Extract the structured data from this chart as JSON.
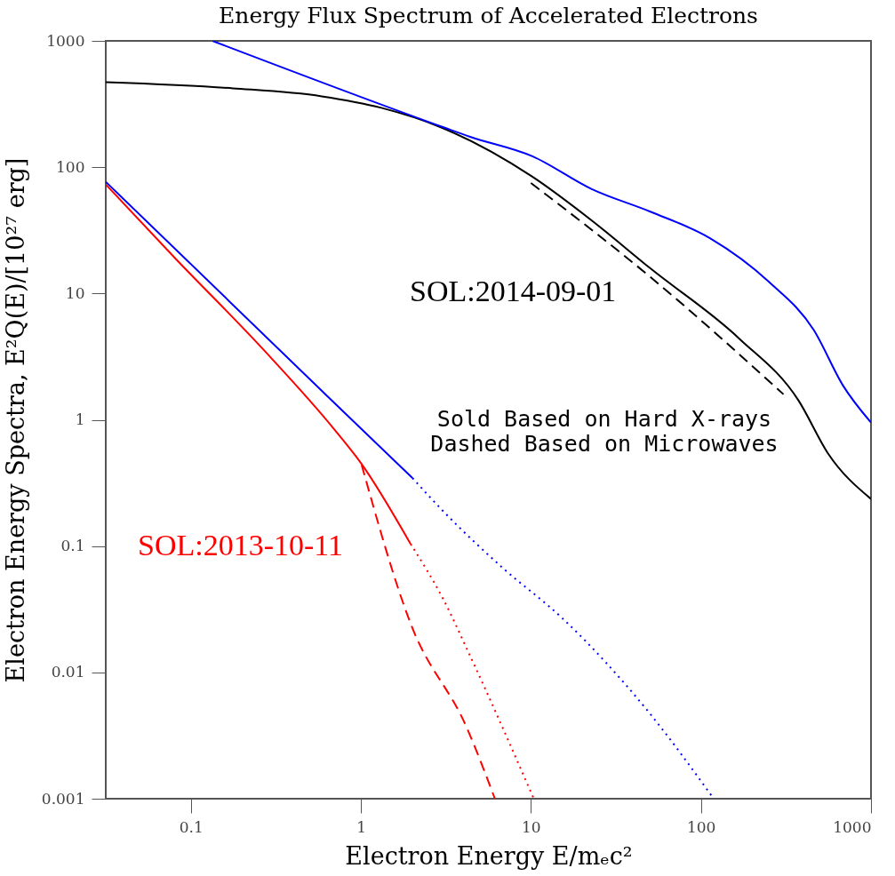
{
  "chart_data": {
    "type": "line",
    "title": "Energy Flux Spectrum of Accelerated Electrons",
    "xlabel": "Electron Energy E/mₑc²",
    "ylabel": "Electron Energy Spectra, E²Q(E)/[10²⁷ erg]",
    "log": "xy",
    "grid": false,
    "marker": "none",
    "xlim": [
      0.0316,
      1000
    ],
    "ylim": [
      0.001,
      1000
    ],
    "xticks": [
      0.1,
      1,
      10,
      100,
      1000
    ],
    "yticks": [
      0.001,
      0.01,
      0.1,
      1,
      10,
      100,
      1000
    ],
    "series": [
      {
        "color": "#000000",
        "line_style": "solid",
        "x": [
          0.0316,
          0.177,
          0.589,
          1.32,
          2.95,
          10.2,
          22.8,
          50.4,
          168,
          375,
          558,
          1000
        ],
        "values": [
          471,
          421,
          364,
          295,
          207,
          84,
          37.8,
          15.8,
          4.39,
          1.42,
          0.543,
          0.236
        ]
      },
      {
        "color": "#ff0000",
        "line_style": "solid",
        "x": [
          0.0316,
          0.08,
          0.267,
          0.698,
          1,
          1.96
        ],
        "values": [
          73,
          19.3,
          3.6,
          0.84,
          0.455,
          0.104
        ]
      },
      {
        "color": "#0000ff",
        "line_style": "solid",
        "x": [
          0.134,
          3.06,
          4.39,
          10.2,
          22.8,
          50.4,
          113,
          252,
          460,
          684,
          1000
        ],
        "values": [
          1000,
          207,
          174,
          122,
          67,
          44.4,
          27.4,
          12.3,
          5.15,
          1.87,
          0.95
        ]
      },
      {
        "color": "#000000",
        "line_style": "dashed",
        "x": [
          10,
          50.4,
          306
        ],
        "values": [
          75,
          13.5,
          1.59
        ]
      },
      {
        "color": "#0000ff",
        "line_style": "solid",
        "x": [
          0.0316,
          0.698,
          2.01
        ],
        "values": [
          76.6,
          1.36,
          0.346
        ]
      },
      {
        "color": "#0000ff",
        "line_style": "dotted",
        "x": [
          2.01,
          3.06,
          6.84,
          15.1,
          50.4,
          117
        ],
        "values": [
          0.346,
          0.188,
          0.067,
          0.0273,
          0.00467,
          0.00103
        ]
      },
      {
        "color": "#ff0000",
        "line_style": "dotted",
        "x": [
          1.96,
          3.06,
          4.39,
          10.4
        ],
        "values": [
          0.104,
          0.0377,
          0.0135,
          0.001
        ]
      },
      {
        "color": "#ff0000",
        "line_style": "dashed",
        "x": [
          1.01,
          1.96,
          4.23,
          6.14
        ],
        "values": [
          0.44,
          0.0244,
          0.00356,
          0.001
        ]
      }
    ],
    "annotations": [
      "SOL:2014-09-01",
      "SOL:2013-10-11",
      "Sold Based on Hard X-rays",
      "Dashed Based on Microwaves"
    ]
  }
}
